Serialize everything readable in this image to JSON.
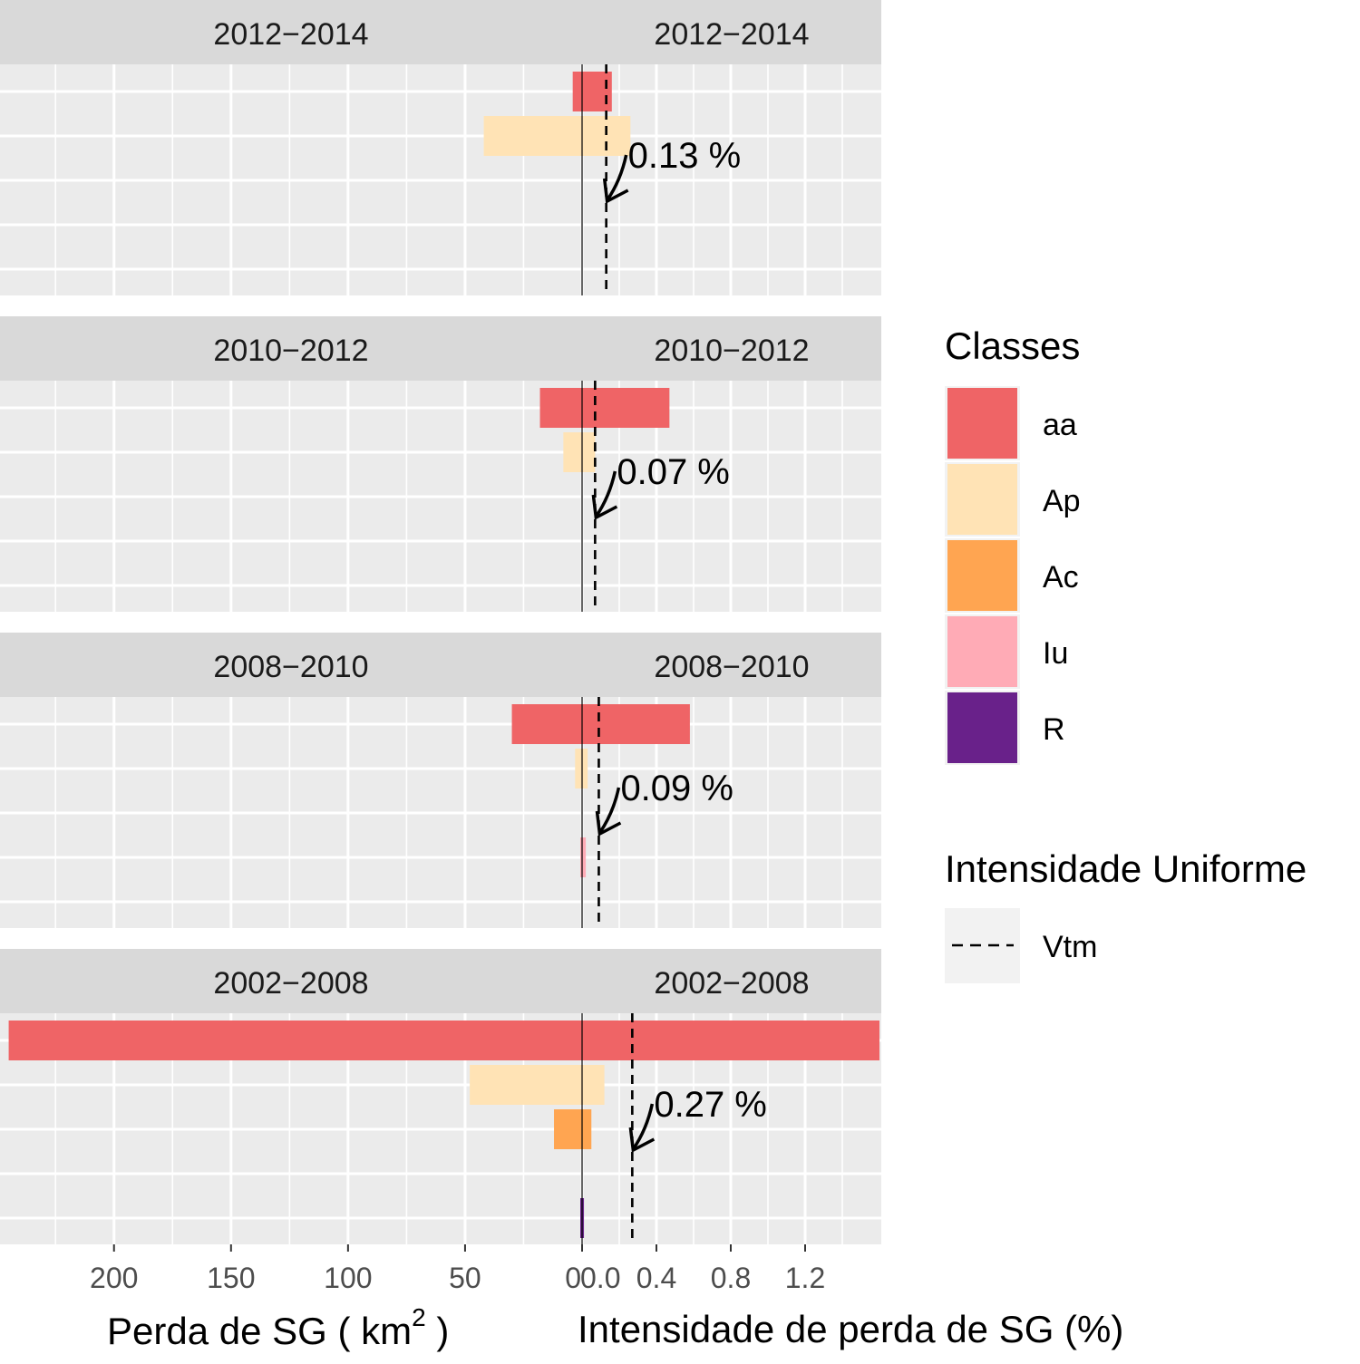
{
  "chart_data": {
    "type": "bar",
    "orientation": "horizontal",
    "layout": "back-to-back facets",
    "facets": [
      {
        "label": "2012−2014",
        "loss_km2": {
          "aa": 4,
          "Ap": 42
        },
        "intensity_pct": {
          "aa": 0.16,
          "Ap": 0.26
        },
        "uniform_intensity_pct": 0.13,
        "uniform_label": "0.13 %"
      },
      {
        "label": "2010−2012",
        "loss_km2": {
          "aa": 18,
          "Ap": 8
        },
        "intensity_pct": {
          "aa": 0.47,
          "Ap": 0.07
        },
        "uniform_intensity_pct": 0.07,
        "uniform_label": "0.07 %"
      },
      {
        "label": "2008−2010",
        "loss_km2": {
          "aa": 30,
          "Ap": 3,
          "Iu": 0.5
        },
        "intensity_pct": {
          "aa": 0.58,
          "Ap": 0.03,
          "Iu": 0.02
        },
        "uniform_intensity_pct": 0.09,
        "uniform_label": "0.09 %"
      },
      {
        "label": "2002−2008",
        "loss_km2": {
          "aa": 245,
          "Ap": 48,
          "Ac": 12,
          "R": 0.5
        },
        "intensity_pct": {
          "aa": 1.6,
          "Ap": 0.12,
          "Ac": 0.05,
          "R": 0.01
        },
        "uniform_intensity_pct": 0.27,
        "uniform_label": "0.27 %"
      }
    ],
    "left_axis": {
      "label_main": "Perda de SG ( km",
      "label_sup": "2",
      "label_end": " )",
      "ticks": [
        "200",
        "150",
        "100",
        "50",
        "0"
      ],
      "range": [
        0,
        246
      ],
      "reversed": true
    },
    "right_axis": {
      "label": "Intensidade de perda de SG (%)",
      "ticks": [
        "0.0",
        "0.4",
        "0.8",
        "1.2"
      ],
      "range": [
        0,
        1.6
      ]
    },
    "legend": {
      "placement": "right",
      "title": "Classes",
      "entries": [
        {
          "name": "aa",
          "color": "#ef6466"
        },
        {
          "name": "Ap",
          "color": "#ffe3b5"
        },
        {
          "name": "Ac",
          "color": "#ffa551"
        },
        {
          "name": "Iu",
          "color": "#ffabb6"
        },
        {
          "name": "R",
          "color": "#69218a"
        }
      ],
      "line_title": "Intensidade Uniforme",
      "line_entry": "Vtm"
    },
    "grid": true
  }
}
